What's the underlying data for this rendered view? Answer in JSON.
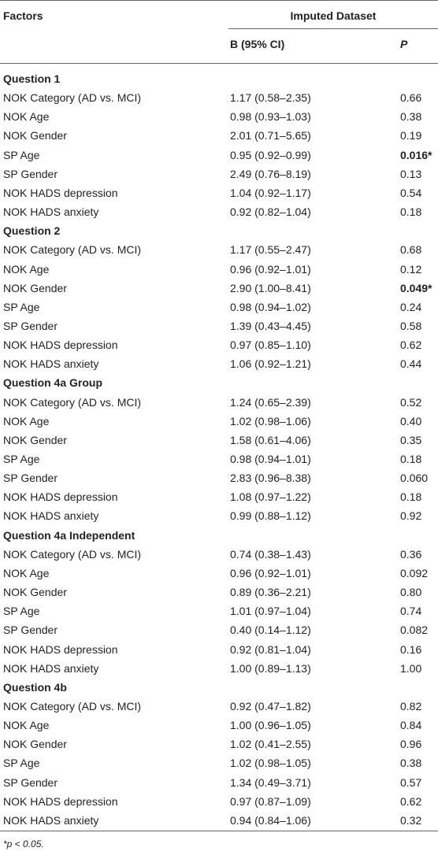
{
  "table": {
    "header": {
      "factors": "Factors",
      "group": "Imputed Dataset",
      "b": "B (95% CI)",
      "p": "P"
    },
    "sections": [
      {
        "title": "Question 1",
        "rows": [
          {
            "factor": "NOK Category (AD vs. MCI)",
            "b": "1.17 (0.58–2.35)",
            "p": "0.66"
          },
          {
            "factor": "NOK Age",
            "b": "0.98 (0.93–1.03)",
            "p": "0.38"
          },
          {
            "factor": "NOK Gender",
            "b": "2.01 (0.71–5.65)",
            "p": "0.19"
          },
          {
            "factor": "SP Age",
            "b": "0.95 (0.92–0.99)",
            "p": "0.016*",
            "bold": true
          },
          {
            "factor": "SP Gender",
            "b": "2.49 (0.76–8.19)",
            "p": "0.13"
          },
          {
            "factor": "NOK HADS depression",
            "b": "1.04 (0.92–1.17)",
            "p": "0.54"
          },
          {
            "factor": "NOK HADS anxiety",
            "b": "0.92 (0.82–1.04)",
            "p": "0.18"
          }
        ]
      },
      {
        "title": "Question 2",
        "rows": [
          {
            "factor": "NOK Category (AD vs. MCI)",
            "b": "1.17 (0.55–2.47)",
            "p": "0.68"
          },
          {
            "factor": "NOK Age",
            "b": "0.96 (0.92–1.01)",
            "p": "0.12"
          },
          {
            "factor": "NOK Gender",
            "b": "2.90 (1.00–8.41)",
            "p": "0.049*",
            "bold": true
          },
          {
            "factor": "SP Age",
            "b": "0.98 (0.94–1.02)",
            "p": "0.24"
          },
          {
            "factor": "SP Gender",
            "b": "1.39 (0.43–4.45)",
            "p": "0.58"
          },
          {
            "factor": "NOK HADS depression",
            "b": "0.97 (0.85–1.10)",
            "p": "0.62"
          },
          {
            "factor": "NOK HADS anxiety",
            "b": "1.06 (0.92–1.21)",
            "p": "0.44"
          }
        ]
      },
      {
        "title": "Question 4a Group",
        "rows": [
          {
            "factor": "NOK Category (AD vs. MCI)",
            "b": "1.24 (0.65–2.39)",
            "p": "0.52"
          },
          {
            "factor": "NOK Age",
            "b": "1.02 (0.98–1.06)",
            "p": "0.40"
          },
          {
            "factor": "NOK Gender",
            "b": "1.58 (0.61–4.06)",
            "p": "0.35"
          },
          {
            "factor": "SP Age",
            "b": "0.98 (0.94–1.01)",
            "p": "0.18"
          },
          {
            "factor": "SP Gender",
            "b": "2.83 (0.96–8.38)",
            "p": "0.060"
          },
          {
            "factor": "NOK HADS depression",
            "b": "1.08 (0.97–1.22)",
            "p": "0.18"
          },
          {
            "factor": "NOK HADS anxiety",
            "b": "0.99 (0.88–1.12)",
            "p": "0.92"
          }
        ]
      },
      {
        "title": "Question 4a Independent",
        "rows": [
          {
            "factor": "NOK Category (AD vs. MCI)",
            "b": "0.74 (0.38–1.43)",
            "p": "0.36"
          },
          {
            "factor": "NOK Age",
            "b": "0.96 (0.92–1.01)",
            "p": "0.092"
          },
          {
            "factor": "NOK Gender",
            "b": "0.89 (0.36–2.21)",
            "p": "0.80"
          },
          {
            "factor": "SP Age",
            "b": "1.01 (0.97–1.04)",
            "p": "0.74"
          },
          {
            "factor": "SP Gender",
            "b": "0.40 (0.14–1.12)",
            "p": "0.082"
          },
          {
            "factor": "NOK HADS depression",
            "b": "0.92 (0.81–1.04)",
            "p": "0.16"
          },
          {
            "factor": "NOK HADS anxiety",
            "b": "1.00 (0.89–1.13)",
            "p": "1.00"
          }
        ]
      },
      {
        "title": "Question 4b",
        "rows": [
          {
            "factor": "NOK Category (AD vs. MCI)",
            "b": "0.92 (0.47–1.82)",
            "p": "0.82"
          },
          {
            "factor": "NOK Age",
            "b": "1.00 (0.96–1.05)",
            "p": "0.84"
          },
          {
            "factor": "NOK Gender",
            "b": "1.02 (0.41–2.55)",
            "p": "0.96"
          },
          {
            "factor": "SP Age",
            "b": "1.02 (0.98–1.05)",
            "p": "0.38"
          },
          {
            "factor": "SP Gender",
            "b": "1.34 (0.49–3.71)",
            "p": "0.57"
          },
          {
            "factor": "NOK HADS depression",
            "b": "0.97 (0.87–1.09)",
            "p": "0.62"
          },
          {
            "factor": "NOK HADS anxiety",
            "b": "0.94 (0.84–1.06)",
            "p": "0.32"
          }
        ]
      }
    ],
    "footnote": "*p < 0.05."
  }
}
